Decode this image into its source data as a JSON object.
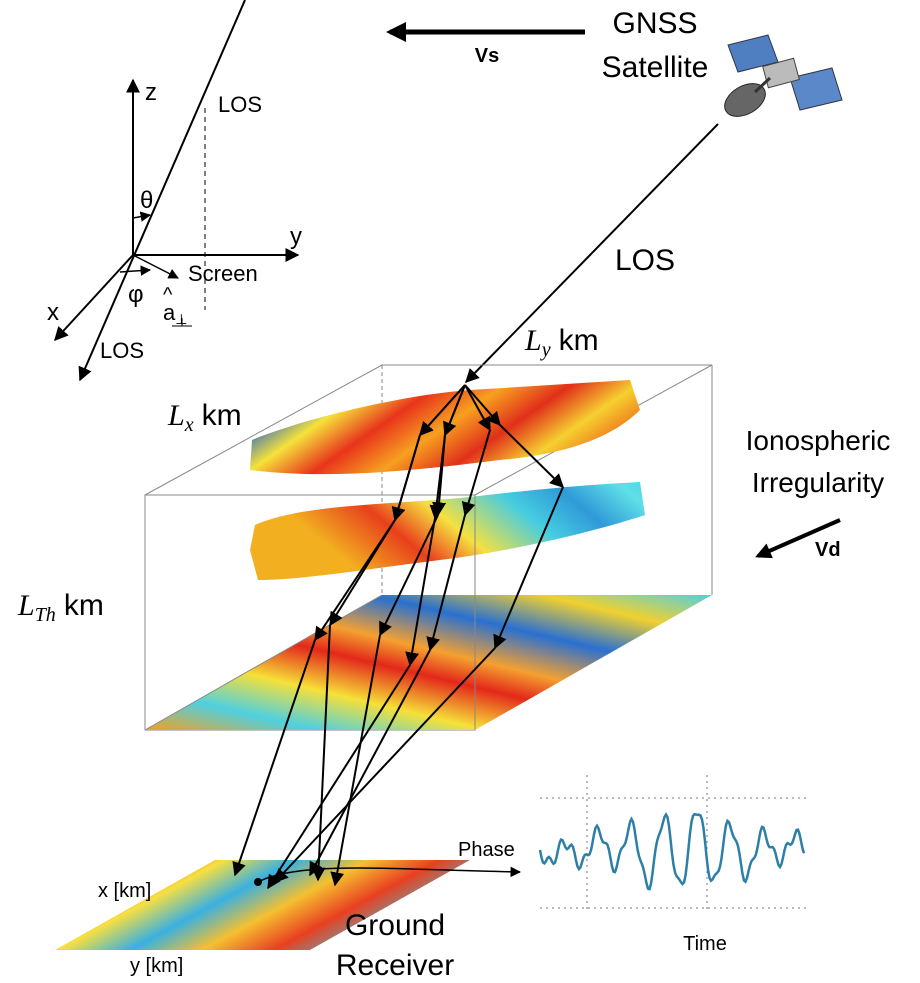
{
  "satellite": {
    "name_lines": [
      "GNSS",
      "Satellite"
    ],
    "velocity": "Vs"
  },
  "coordinate_frame": {
    "z": "z",
    "y": "y",
    "x": "x",
    "theta": "θ",
    "phi": "φ",
    "los_top": "LOS",
    "los_bottom": "LOS",
    "screen": "Screen",
    "unit_vector": "a",
    "unit_vector_hat": "^",
    "unit_vector_subscript": "⊥"
  },
  "line_of_sight": "LOS",
  "irregularity": {
    "name_lines": [
      "Ionospheric",
      "Irregularity"
    ],
    "drift_velocity": "Vd",
    "ly": {
      "symbol": "L",
      "subscript": "y",
      "unit": "km"
    },
    "lx": {
      "symbol": "L",
      "subscript": "x",
      "unit": "km"
    },
    "lth": {
      "symbol": "L",
      "subscript": "Th",
      "unit": "km"
    }
  },
  "signal": {
    "y_label": "Phase",
    "x_label": "Time"
  },
  "ground": {
    "x_label": "x [km]",
    "y_label": "y [km]",
    "receiver_lines": [
      "Ground",
      "Receiver"
    ]
  }
}
